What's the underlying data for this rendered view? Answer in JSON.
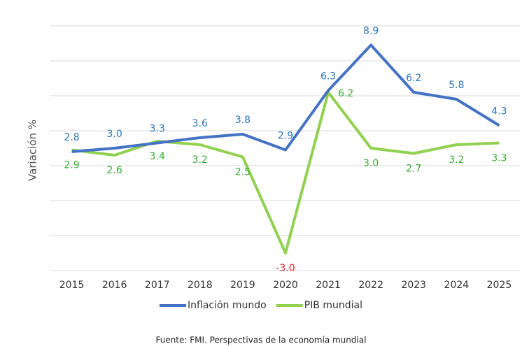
{
  "chart_data": {
    "type": "line",
    "y_label": "Variación %",
    "source": "Fuente: FMI. Perspectivas de la economía mundial",
    "categories": [
      "2015",
      "2016",
      "2017",
      "2018",
      "2019",
      "2020",
      "2021",
      "2022",
      "2023",
      "2024",
      "2025"
    ],
    "series": [
      {
        "name": "Inflación mundo",
        "color": "#4472c4",
        "label_color": "#2e75b6",
        "values": [
          2.8,
          3.0,
          3.3,
          3.6,
          3.8,
          2.9,
          6.3,
          8.9,
          6.2,
          5.8,
          4.3
        ],
        "value_labels": [
          "2.8",
          "3.0",
          "3.3",
          "3.6",
          "3.8",
          "2.9",
          "6.3",
          "8.9",
          "6.2",
          "5.8",
          "4.3"
        ]
      },
      {
        "name": "PIB mundial",
        "color": "#92d050",
        "label_color": "#3aaa35",
        "values": [
          2.9,
          2.6,
          3.4,
          3.2,
          2.5,
          -3.0,
          6.2,
          3.0,
          2.7,
          3.2,
          3.3
        ],
        "value_labels": [
          "2.9",
          "2.6",
          "3.4",
          "3.2",
          "2.5",
          "-3.0",
          "6.2",
          "3.0",
          "2.7",
          "3.2",
          "3.3"
        ]
      }
    ],
    "ylim": [
      -4,
      10
    ],
    "yticks": [
      -4,
      -2,
      0,
      2,
      4,
      6,
      8,
      10
    ],
    "grid": true,
    "negative_label_color": "#e0202a"
  }
}
